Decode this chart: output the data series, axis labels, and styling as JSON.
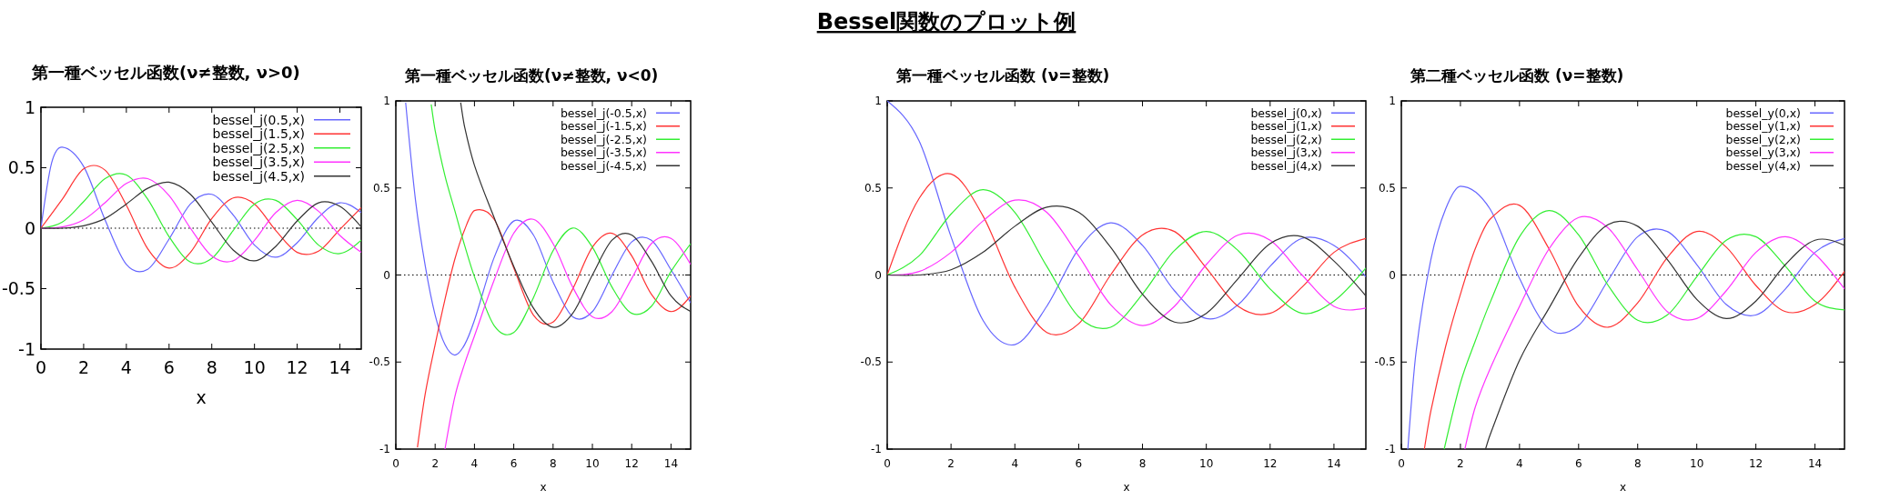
{
  "chart_data": [
    {
      "type": "other",
      "title": "Bessel関数のプロット例"
    },
    {
      "type": "line",
      "title": "第一種ベッセル函数(ν≠整数, ν>0)",
      "xlabel": "x",
      "x": [
        0,
        1,
        2,
        3,
        4,
        5,
        6,
        7,
        8,
        9,
        10,
        11,
        12,
        13,
        14,
        15
      ],
      "xlim": [
        0,
        15
      ],
      "ylim": [
        -1,
        1
      ],
      "xticks": [
        0,
        2,
        4,
        6,
        8,
        10,
        12,
        14
      ],
      "yticks": [
        -1,
        -0.5,
        0,
        0.5,
        1
      ],
      "legend": "top right",
      "grid": false,
      "ref_lines": [
        {
          "axis": "y",
          "value": 0,
          "line_style": "dotted"
        }
      ],
      "series": [
        {
          "name": "bessel_j(0.5,x)",
          "color": "#6666ff",
          "x": [
            0,
            0.5,
            1,
            2,
            3,
            4,
            5,
            6,
            7,
            8,
            9,
            10,
            11,
            12,
            13,
            14,
            15
          ],
          "values": [
            0,
            0.54,
            0.67,
            0.51,
            0.07,
            -0.3,
            -0.34,
            -0.09,
            0.2,
            0.28,
            0.11,
            -0.14,
            -0.24,
            -0.12,
            0.09,
            0.21,
            0.13
          ]
        },
        {
          "name": "bessel_j(1.5,x)",
          "color": "#ff3333",
          "values": [
            0,
            0.24,
            0.49,
            0.48,
            0.19,
            -0.17,
            -0.33,
            -0.2,
            0.08,
            0.25,
            0.2,
            -0.02,
            -0.2,
            -0.19,
            -0.01,
            0.17
          ]
        },
        {
          "name": "bessel_j(2.5,x)",
          "color": "#33ee33",
          "values": [
            0,
            0.05,
            0.22,
            0.41,
            0.44,
            0.24,
            -0.07,
            -0.28,
            -0.25,
            -0.02,
            0.2,
            0.23,
            0.07,
            -0.14,
            -0.21,
            -0.1
          ]
        },
        {
          "name": "bessel_j(3.5,x)",
          "color": "#ff33ff",
          "values": [
            0,
            0.01,
            0.07,
            0.21,
            0.37,
            0.41,
            0.27,
            0,
            -0.23,
            -0.27,
            -0.1,
            0.13,
            0.23,
            0.14,
            -0.06,
            -0.2
          ]
        },
        {
          "name": "bessel_j(4.5,x)",
          "color": "#333333",
          "values": [
            0,
            0,
            0.02,
            0.08,
            0.2,
            0.33,
            0.38,
            0.28,
            0.05,
            -0.18,
            -0.27,
            -0.15,
            0.06,
            0.21,
            0.18,
            0.01
          ]
        }
      ]
    },
    {
      "type": "line",
      "title": "第一種ベッセル函数(ν≠整数, ν<0)",
      "xlabel": "x",
      "xlim": [
        0,
        15
      ],
      "ylim": [
        -1,
        1
      ],
      "xticks": [
        0,
        2,
        4,
        6,
        8,
        10,
        12,
        14
      ],
      "yticks": [
        -1,
        -0.5,
        0,
        0.5,
        1
      ],
      "legend": "top right",
      "grid": false,
      "ref_lines": [
        {
          "axis": "y",
          "value": 0,
          "line_style": "dotted"
        }
      ],
      "series": [
        {
          "name": "bessel_j(-0.5,x)",
          "color": "#6666ff",
          "x": [
            0.5,
            1,
            1.5,
            2,
            2.5,
            3,
            3.5,
            4,
            5,
            6,
            7,
            8,
            9,
            10,
            11,
            12,
            13,
            14,
            15
          ],
          "values": [
            0.99,
            0.43,
            0.05,
            -0.23,
            -0.4,
            -0.46,
            -0.4,
            -0.26,
            0.1,
            0.31,
            0.23,
            -0.04,
            -0.24,
            -0.21,
            0,
            0.19,
            0.2,
            0.03,
            -0.16
          ]
        },
        {
          "name": "bessel_j(-1.5,x)",
          "color": "#ff3333",
          "x": [
            1.1,
            1.5,
            2,
            2.5,
            3,
            3.5,
            4,
            5,
            6,
            7,
            8,
            9,
            10,
            11,
            12,
            13,
            14,
            15
          ],
          "values": [
            -0.99,
            -0.68,
            -0.4,
            -0.14,
            0.09,
            0.26,
            0.37,
            0.32,
            0.04,
            -0.23,
            -0.27,
            -0.08,
            0.16,
            0.24,
            0.11,
            -0.11,
            -0.21,
            -0.12
          ]
        },
        {
          "name": "bessel_j(-2.5,x)",
          "color": "#33ee33",
          "x": [
            1.8,
            2,
            2.5,
            3,
            3.5,
            4,
            5,
            6,
            7,
            8,
            9,
            10,
            11,
            12,
            13,
            14,
            15
          ],
          "values": [
            0.98,
            0.83,
            0.57,
            0.37,
            0.17,
            -0.01,
            -0.29,
            -0.33,
            -0.13,
            0.14,
            0.27,
            0.16,
            -0.07,
            -0.22,
            -0.18,
            0.02,
            0.18
          ]
        },
        {
          "name": "bessel_j(-3.5,x)",
          "color": "#ff33ff",
          "x": [
            2.5,
            3,
            3.5,
            4,
            5,
            6,
            7,
            8,
            9,
            10,
            11,
            12,
            13,
            14,
            15
          ],
          "values": [
            -1,
            -0.7,
            -0.51,
            -0.35,
            -0.03,
            0.24,
            0.32,
            0.18,
            -0.07,
            -0.24,
            -0.21,
            -0.02,
            0.18,
            0.21,
            0.06
          ]
        },
        {
          "name": "bessel_j(-4.5,x)",
          "color": "#333333",
          "x": [
            3.3,
            3.5,
            4,
            5,
            6,
            7,
            8,
            9,
            10,
            11,
            12,
            13,
            14,
            15
          ],
          "values": [
            0.99,
            0.85,
            0.63,
            0.33,
            0.05,
            -0.19,
            -0.3,
            -0.22,
            0,
            0.2,
            0.23,
            0.08,
            -0.12,
            -0.21
          ]
        }
      ]
    },
    {
      "type": "line",
      "title": "第一種ベッセル函数 (ν=整数)",
      "xlabel": "x",
      "x": [
        0,
        1,
        2,
        3,
        4,
        5,
        6,
        7,
        8,
        9,
        10,
        11,
        12,
        13,
        14,
        15
      ],
      "xlim": [
        0,
        15
      ],
      "ylim": [
        -1,
        1
      ],
      "xticks": [
        0,
        2,
        4,
        6,
        8,
        10,
        12,
        14
      ],
      "yticks": [
        -1,
        -0.5,
        0,
        0.5,
        1
      ],
      "legend": "top right",
      "grid": false,
      "ref_lines": [
        {
          "axis": "y",
          "value": 0,
          "line_style": "dotted"
        }
      ],
      "series": [
        {
          "name": "bessel_j(0,x)",
          "color": "#6666ff",
          "values": [
            1,
            0.77,
            0.22,
            -0.26,
            -0.4,
            -0.18,
            0.15,
            0.3,
            0.17,
            -0.09,
            -0.25,
            -0.17,
            0.05,
            0.21,
            0.17,
            -0.01
          ]
        },
        {
          "name": "bessel_j(1,x)",
          "color": "#ff3333",
          "values": [
            0,
            0.44,
            0.58,
            0.34,
            -0.07,
            -0.33,
            -0.28,
            0,
            0.23,
            0.25,
            0.04,
            -0.18,
            -0.22,
            -0.07,
            0.13,
            0.21
          ]
        },
        {
          "name": "bessel_j(2,x)",
          "color": "#33ee33",
          "values": [
            0,
            0.11,
            0.35,
            0.49,
            0.36,
            0.05,
            -0.24,
            -0.3,
            -0.11,
            0.14,
            0.25,
            0.14,
            -0.08,
            -0.22,
            -0.15,
            0.04
          ]
        },
        {
          "name": "bessel_j(3,x)",
          "color": "#ff33ff",
          "values": [
            0,
            0.02,
            0.13,
            0.31,
            0.43,
            0.36,
            0.11,
            -0.17,
            -0.29,
            -0.18,
            0.06,
            0.23,
            0.2,
            0,
            -0.18,
            -0.19
          ]
        },
        {
          "name": "bessel_j(4,x)",
          "color": "#333333",
          "values": [
            0,
            0,
            0.03,
            0.13,
            0.28,
            0.39,
            0.36,
            0.16,
            -0.11,
            -0.27,
            -0.22,
            -0.02,
            0.18,
            0.22,
            0.08,
            -0.12
          ]
        }
      ]
    },
    {
      "type": "line",
      "title": "第二種ベッセル函数 (ν=整数)",
      "xlabel": "x",
      "xlim": [
        0,
        15
      ],
      "ylim": [
        -1,
        1
      ],
      "xticks": [
        0,
        2,
        4,
        6,
        8,
        10,
        12,
        14
      ],
      "yticks": [
        -1,
        -0.5,
        0,
        0.5,
        1
      ],
      "legend": "top right",
      "grid": false,
      "ref_lines": [
        {
          "axis": "y",
          "value": 0,
          "line_style": "dotted"
        }
      ],
      "series": [
        {
          "name": "bessel_y(0,x)",
          "color": "#6666ff",
          "x": [
            0.22,
            0.5,
            1,
            1.5,
            2,
            3,
            4,
            5,
            6,
            7,
            8,
            9,
            10,
            11,
            12,
            13,
            14,
            15
          ],
          "values": [
            -1,
            -0.44,
            0.09,
            0.38,
            0.51,
            0.38,
            -0.02,
            -0.31,
            -0.29,
            -0.03,
            0.22,
            0.25,
            0.06,
            -0.17,
            -0.23,
            -0.08,
            0.13,
            0.21
          ]
        },
        {
          "name": "bessel_y(1,x)",
          "color": "#ff3333",
          "x": [
            0.78,
            1,
            1.5,
            2,
            2.5,
            3,
            4,
            5,
            6,
            7,
            8,
            9,
            10,
            11,
            12,
            13,
            14,
            15
          ],
          "values": [
            -1,
            -0.78,
            -0.41,
            -0.11,
            0.15,
            0.32,
            0.4,
            0.15,
            -0.18,
            -0.3,
            -0.16,
            0.1,
            0.25,
            0.16,
            -0.06,
            -0.21,
            -0.17,
            0.02
          ]
        },
        {
          "name": "bessel_y(2,x)",
          "color": "#33ee33",
          "x": [
            1.45,
            2,
            2.5,
            3,
            4,
            5,
            6,
            7,
            8,
            9,
            10,
            11,
            12,
            13,
            14,
            15
          ],
          "values": [
            -1,
            -0.62,
            -0.38,
            -0.16,
            0.22,
            0.37,
            0.23,
            -0.06,
            -0.26,
            -0.23,
            -0.01,
            0.2,
            0.22,
            0.05,
            -0.15,
            -0.2
          ]
        },
        {
          "name": "bessel_y(3,x)",
          "color": "#ff33ff",
          "x": [
            2.15,
            2.5,
            3,
            4,
            5,
            6,
            7,
            8,
            9,
            10,
            11,
            12,
            13,
            14,
            15
          ],
          "values": [
            -1,
            -0.76,
            -0.54,
            -0.18,
            0.15,
            0.33,
            0.27,
            0.03,
            -0.21,
            -0.25,
            -0.09,
            0.13,
            0.22,
            0.12,
            -0.08
          ]
        },
        {
          "name": "bessel_y(4,x)",
          "color": "#333333",
          "x": [
            2.85,
            3,
            4,
            5,
            6,
            7,
            8,
            9,
            10,
            11,
            12,
            13,
            14,
            15
          ],
          "values": [
            -1,
            -0.92,
            -0.49,
            -0.19,
            0.1,
            0.29,
            0.28,
            0.09,
            -0.14,
            -0.25,
            -0.15,
            0.06,
            0.2,
            0.17
          ]
        }
      ]
    }
  ]
}
